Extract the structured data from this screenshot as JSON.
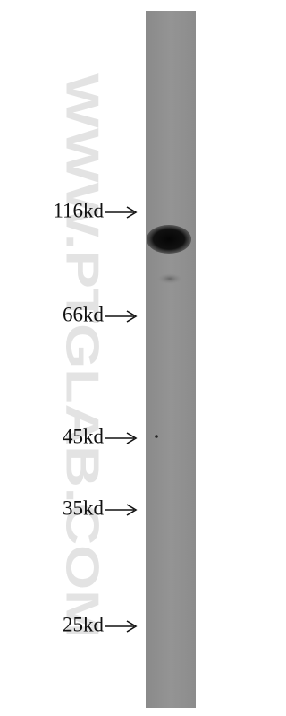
{
  "markers": [
    "116kd",
    "66kd",
    "45kd",
    "35kd",
    "25kd"
  ],
  "watermark": "WWW.PTGLAB.COM"
}
